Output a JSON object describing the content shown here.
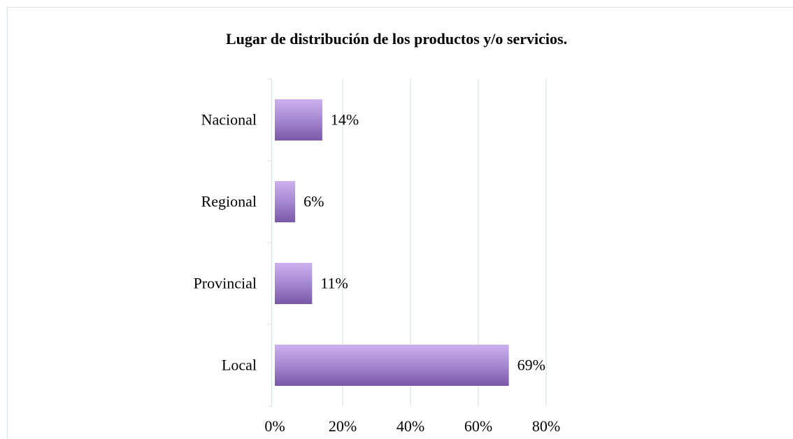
{
  "chart_data": {
    "type": "bar",
    "orientation": "horizontal",
    "title": "Lugar de distribución de los productos y/o servicios.",
    "categories": [
      "Nacional",
      "Regional",
      "Provincial",
      "Local"
    ],
    "values": [
      14,
      6,
      11,
      69
    ],
    "value_labels": [
      "14%",
      "6%",
      "11%",
      "69%"
    ],
    "color": "#9a78c8",
    "xlim": [
      0,
      80
    ],
    "xticks": [
      {
        "value": 0,
        "label": "0%"
      },
      {
        "value": 20,
        "label": "20%"
      },
      {
        "value": 40,
        "label": "40%"
      },
      {
        "value": 60,
        "label": "60%"
      },
      {
        "value": 80,
        "label": "80%"
      }
    ],
    "grid": true
  }
}
